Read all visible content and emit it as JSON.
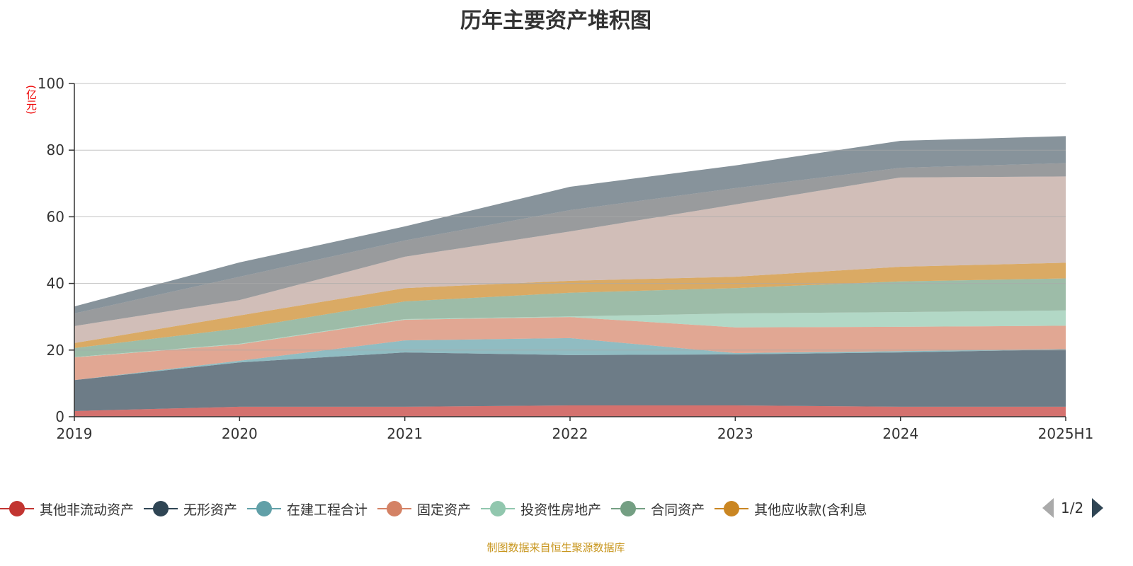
{
  "title": "历年主要资产堆积图",
  "source": "制图数据来自恒生聚源数据库",
  "legend_page": "1/2",
  "chart_data": {
    "type": "area",
    "stacked": true,
    "title": "历年主要资产堆积图",
    "ylabel": "(亿元)",
    "xlabel": "",
    "ylim": [
      0,
      100
    ],
    "yticks": [
      0,
      20,
      40,
      60,
      80,
      100
    ],
    "grid": true,
    "legend_position": "bottom",
    "categories": [
      "2019",
      "2020",
      "2021",
      "2022",
      "2023",
      "2024",
      "2025H1"
    ],
    "series": [
      {
        "name": "其他非流动资产",
        "color": "#c23531",
        "values": [
          1.7,
          3.0,
          3.0,
          3.4,
          3.4,
          3.0,
          3.0
        ]
      },
      {
        "name": "无形资产",
        "color": "#2f4554",
        "values": [
          9.3,
          13.3,
          16.3,
          15.1,
          15.3,
          16.3,
          17.2
        ]
      },
      {
        "name": "在建工程合计",
        "color": "#61a0a8",
        "values": [
          0.0,
          0.5,
          3.6,
          5.1,
          0.4,
          0.4,
          0.1
        ]
      },
      {
        "name": "固定资产",
        "color": "#d48265",
        "values": [
          6.8,
          4.9,
          6.2,
          6.3,
          7.7,
          7.3,
          7.0
        ]
      },
      {
        "name": "投资性房地产",
        "color": "#91c7ae",
        "values": [
          0.1,
          0.2,
          0.2,
          0.2,
          4.2,
          4.4,
          4.6
        ]
      },
      {
        "name": "合同资产",
        "color": "#749f83",
        "values": [
          2.7,
          4.6,
          5.3,
          7.1,
          7.6,
          9.2,
          9.6
        ]
      },
      {
        "name": "其他应收款(含利息",
        "color": "#ca8622",
        "values": [
          1.5,
          3.9,
          4.0,
          3.6,
          3.4,
          4.4,
          4.7
        ]
      },
      {
        "color": "#bda29a",
        "values": [
          5.1,
          4.6,
          9.4,
          14.8,
          21.7,
          26.8,
          25.9
        ]
      },
      {
        "color": "#6e7074",
        "values": [
          3.8,
          7.0,
          4.9,
          6.4,
          4.9,
          2.9,
          4.0
        ]
      },
      {
        "color": "#546570",
        "values": [
          2.1,
          4.3,
          4.2,
          7.0,
          6.8,
          8.1,
          8.1
        ]
      }
    ]
  }
}
